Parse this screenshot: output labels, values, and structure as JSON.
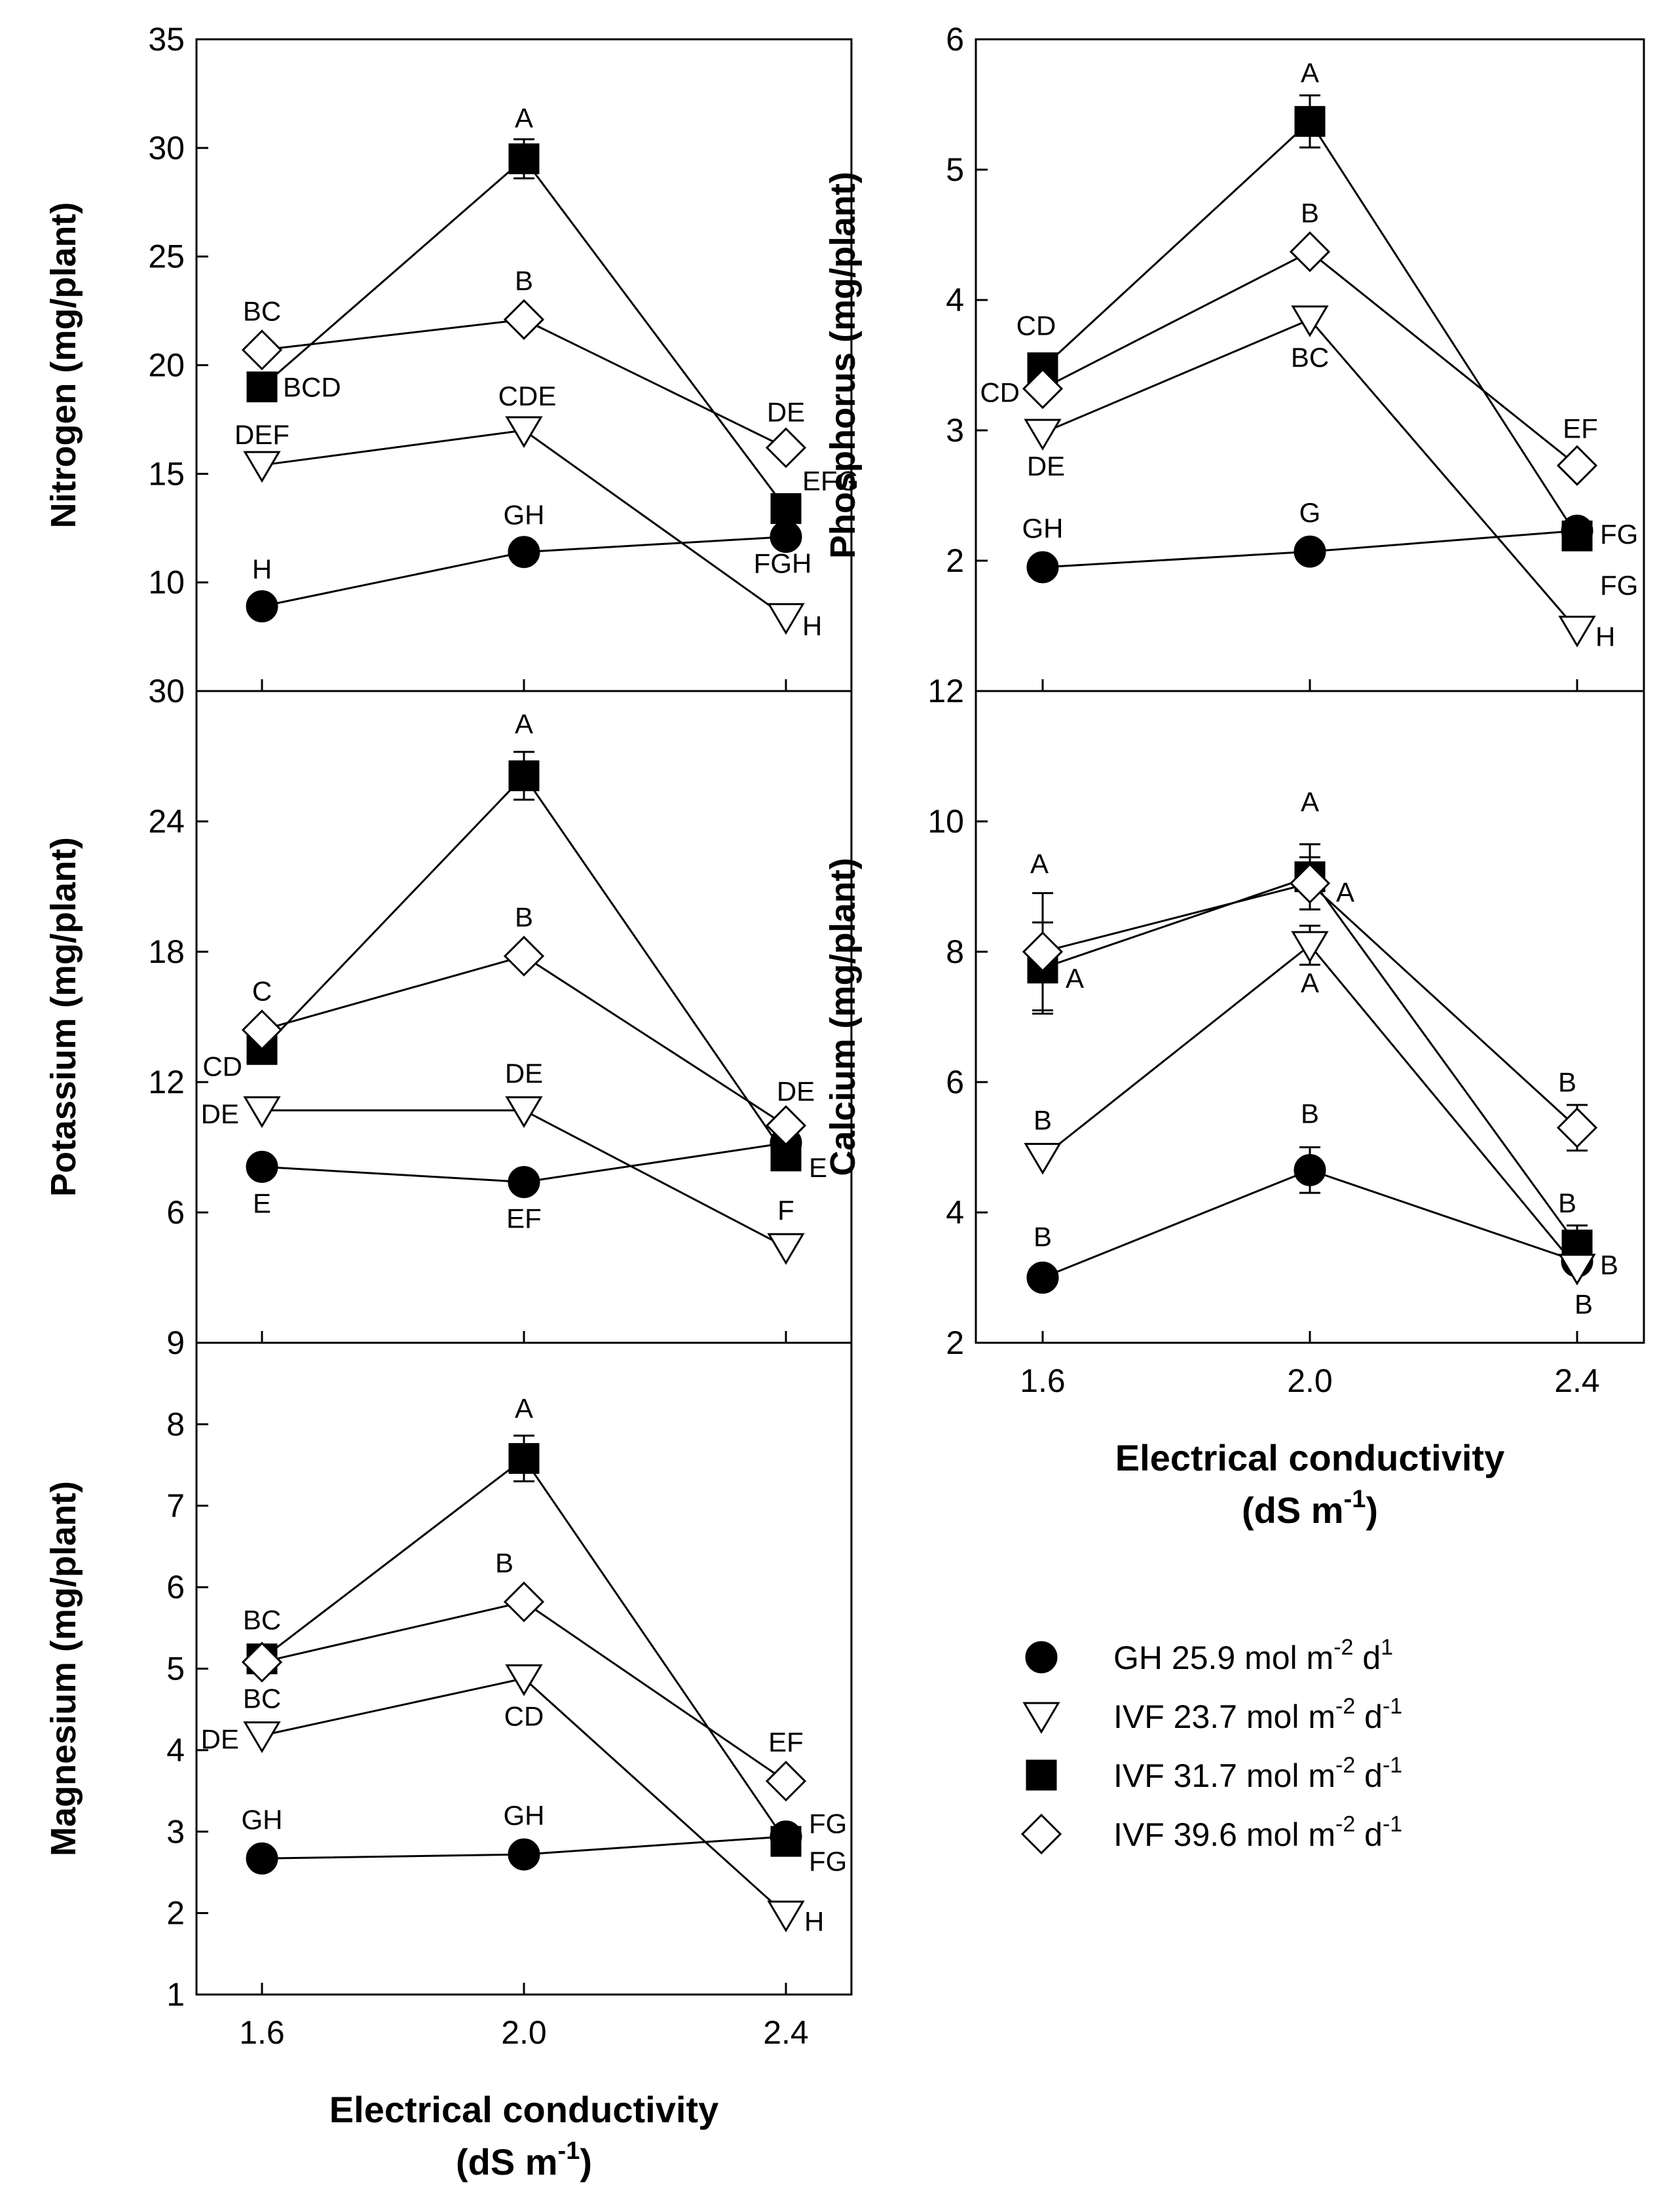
{
  "chart_data": [
    {
      "type": "line",
      "id": "nitrogen",
      "ylabel": "Nitrogen (mg/plant)",
      "ylim": [
        5,
        35
      ],
      "yticks": [
        10,
        15,
        20,
        25,
        30,
        35
      ],
      "x": [
        1.6,
        2.0,
        2.4
      ],
      "xtick_labels": [
        "1.6",
        "2.0",
        "2.4"
      ],
      "xlabel": "",
      "series": [
        {
          "name": "GH",
          "values": [
            8.9,
            11.4,
            12.1
          ],
          "errors": [
            0.3,
            0.4,
            0.3
          ],
          "letters": [
            "H",
            "GH",
            "FGH"
          ]
        },
        {
          "name": "IVF23.7",
          "values": [
            15.4,
            17.0,
            8.4
          ],
          "errors": [
            0.3,
            0.4,
            0.3
          ],
          "letters": [
            "DEF",
            "CDE",
            "H"
          ]
        },
        {
          "name": "IVF31.7",
          "values": [
            19.0,
            29.5,
            13.4
          ],
          "errors": [
            0.4,
            0.9,
            0.5
          ],
          "letters": [
            "BCD",
            "A",
            "EFG"
          ]
        },
        {
          "name": "IVF39.6",
          "values": [
            20.7,
            22.1,
            16.2
          ],
          "errors": [
            0.4,
            0.4,
            0.4
          ],
          "letters": [
            "BC",
            "B",
            "DE"
          ]
        }
      ]
    },
    {
      "type": "line",
      "id": "phosphorus",
      "ylabel": "Phosphorus (mg/plant)",
      "ylim": [
        1,
        6
      ],
      "yticks": [
        2,
        3,
        4,
        5,
        6
      ],
      "x": [
        1.6,
        2.0,
        2.4
      ],
      "xtick_labels": [
        "1.6",
        "2.0",
        "2.4"
      ],
      "xlabel": "",
      "series": [
        {
          "name": "GH",
          "values": [
            1.95,
            2.07,
            2.23
          ],
          "errors": [
            0.05,
            0.06,
            0.05
          ],
          "letters": [
            "GH",
            "G",
            "FG"
          ]
        },
        {
          "name": "IVF23.7",
          "values": [
            2.98,
            3.85,
            1.47
          ],
          "errors": [
            0.06,
            0.07,
            0.04
          ],
          "letters": [
            "DE",
            "BC",
            "H"
          ]
        },
        {
          "name": "IVF31.7",
          "values": [
            3.48,
            5.37,
            2.19
          ],
          "errors": [
            0.08,
            0.2,
            0.05
          ],
          "letters": [
            "CD",
            "A",
            "FG"
          ]
        },
        {
          "name": "IVF39.6",
          "values": [
            3.32,
            4.37,
            2.73
          ],
          "errors": [
            0.07,
            0.08,
            0.06
          ],
          "letters": [
            "CD",
            "B",
            "EF"
          ]
        }
      ]
    },
    {
      "type": "line",
      "id": "potassium",
      "ylabel": "Potassium (mg/plant)",
      "ylim": [
        0,
        30
      ],
      "yticks": [
        6,
        12,
        18,
        24,
        30
      ],
      "x": [
        1.6,
        2.0,
        2.4
      ],
      "xtick_labels": [
        "1.6",
        "2.0",
        "2.4"
      ],
      "xlabel": "",
      "series": [
        {
          "name": "GH",
          "values": [
            8.1,
            7.4,
            9.2
          ],
          "errors": [
            0.3,
            0.3,
            0.3
          ],
          "letters": [
            "E",
            "EF",
            ""
          ]
        },
        {
          "name": "IVF23.7",
          "values": [
            10.7,
            10.7,
            4.4
          ],
          "errors": [
            0.3,
            0.3,
            0.3
          ],
          "letters": [
            "DE",
            "DE",
            "F"
          ]
        },
        {
          "name": "IVF31.7",
          "values": [
            13.5,
            26.1,
            8.6
          ],
          "errors": [
            0.5,
            1.1,
            0.4
          ],
          "letters": [
            "CD",
            "A",
            "E"
          ]
        },
        {
          "name": "IVF39.6",
          "values": [
            14.4,
            17.8,
            10.0
          ],
          "errors": [
            0.4,
            0.4,
            0.4
          ],
          "letters": [
            "C",
            "B",
            "DE"
          ]
        }
      ]
    },
    {
      "type": "line",
      "id": "calcium",
      "ylabel": "Calcium (mg/plant)",
      "ylim": [
        2,
        12
      ],
      "yticks": [
        2,
        4,
        6,
        8,
        10,
        12
      ],
      "x": [
        1.6,
        2.0,
        2.4
      ],
      "xtick_labels": [
        "1.6",
        "2.0",
        "2.4"
      ],
      "xlabel": "Electrical conductivity",
      "xunit": "(dS m",
      "xunit_sup": "-1",
      "xunit_end": ")",
      "series": [
        {
          "name": "GH",
          "values": [
            3.0,
            4.65,
            3.25
          ],
          "errors": [
            0.1,
            0.35,
            0.15
          ],
          "letters": [
            "B",
            "B",
            "B"
          ]
        },
        {
          "name": "IVF23.7",
          "values": [
            4.85,
            8.1,
            3.15
          ],
          "errors": [
            0.15,
            0.3,
            0.15
          ],
          "letters": [
            "B",
            "A",
            "B"
          ]
        },
        {
          "name": "IVF31.7",
          "values": [
            7.75,
            9.15,
            3.5
          ],
          "errors": [
            0.7,
            0.5,
            0.3
          ],
          "letters": [
            "A",
            "A",
            "B"
          ]
        },
        {
          "name": "IVF39.6",
          "values": [
            8.0,
            9.05,
            5.3
          ],
          "errors": [
            0.9,
            0.4,
            0.35
          ],
          "letters": [
            "A",
            "A",
            "B"
          ]
        }
      ]
    },
    {
      "type": "line",
      "id": "magnesium",
      "ylabel": "Magnesium (mg/plant)",
      "ylim": [
        1,
        9
      ],
      "yticks": [
        1,
        2,
        3,
        4,
        5,
        6,
        7,
        8,
        9
      ],
      "x": [
        1.6,
        2.0,
        2.4
      ],
      "xtick_labels": [
        "1.6",
        "2.0",
        "2.4"
      ],
      "xlabel": "Electrical conductivity",
      "xunit": "(dS m",
      "xunit_sup": "-1",
      "xunit_end": ")",
      "series": [
        {
          "name": "GH",
          "values": [
            2.67,
            2.72,
            2.94
          ],
          "errors": [
            0.05,
            0.05,
            0.05
          ],
          "letters": [
            "GH",
            "GH",
            "FG"
          ]
        },
        {
          "name": "IVF23.7",
          "values": [
            4.18,
            4.88,
            1.98
          ],
          "errors": [
            0.06,
            0.06,
            0.05
          ],
          "letters": [
            "DE",
            "CD",
            "H"
          ]
        },
        {
          "name": "IVF31.7",
          "values": [
            5.12,
            7.58,
            2.88
          ],
          "errors": [
            0.08,
            0.28,
            0.05
          ],
          "letters": [
            "BC",
            "A",
            "FG"
          ]
        },
        {
          "name": "IVF39.6",
          "values": [
            5.08,
            5.82,
            3.62
          ],
          "errors": [
            0.07,
            0.12,
            0.06
          ],
          "letters": [
            "BC",
            "B",
            "EF"
          ]
        }
      ]
    }
  ],
  "legend": {
    "items": [
      {
        "series": "GH",
        "marker": "circle",
        "text": "GH 25.9 mol m",
        "sup1": "-2",
        "mid": " d",
        "sup2": "1"
      },
      {
        "series": "IVF23.7",
        "marker": "triangle",
        "text": "IVF 23.7 mol m",
        "sup1": "-2",
        "mid": " d",
        "sup2": "-1"
      },
      {
        "series": "IVF31.7",
        "marker": "square",
        "text": "IVF 31.7 mol m",
        "sup1": "-2",
        "mid": " d",
        "sup2": "-1"
      },
      {
        "series": "IVF39.6",
        "marker": "diamond",
        "text": "IVF 39.6 mol m",
        "sup1": "-2",
        "mid": " d",
        "sup2": "-1"
      }
    ]
  }
}
